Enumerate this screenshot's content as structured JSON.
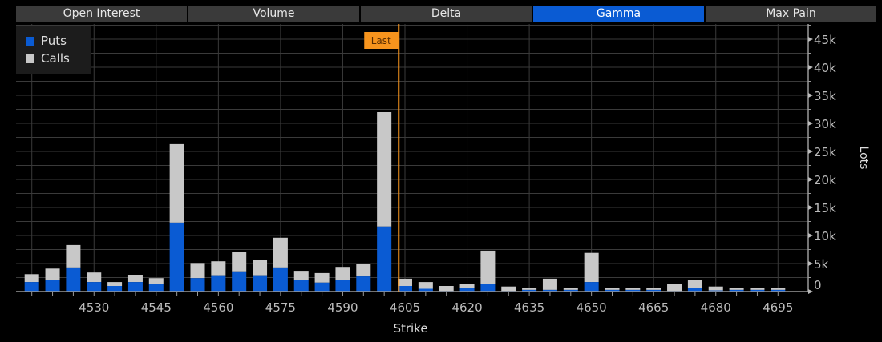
{
  "tabs": [
    {
      "label": "Open Interest",
      "active": false
    },
    {
      "label": "Volume",
      "active": false
    },
    {
      "label": "Delta",
      "active": false
    },
    {
      "label": "Gamma",
      "active": true
    },
    {
      "label": "Max Pain",
      "active": false
    }
  ],
  "colors": {
    "puts": "#0a5bd3",
    "calls": "#c8c8c8",
    "last": "#f7941d",
    "active_tab": "#0a5bd3"
  },
  "chart_data": {
    "type": "bar",
    "stacked": true,
    "xlabel": "Strike",
    "ylabel": "Lots",
    "ylim": [
      0,
      47500
    ],
    "y_ticks": [
      "0",
      "5k",
      "10k",
      "15k",
      "20k",
      "25k",
      "30k",
      "35k",
      "40k",
      "45k"
    ],
    "y_tick_values": [
      0,
      5000,
      10000,
      15000,
      20000,
      25000,
      30000,
      35000,
      40000,
      45000
    ],
    "x_ticks": [
      "4530",
      "4545",
      "4560",
      "4575",
      "4590",
      "4605",
      "4620",
      "4635",
      "4650",
      "4665",
      "4680",
      "4695"
    ],
    "grid": true,
    "legend_position": "top-left",
    "last_marker": {
      "label": "Last",
      "strike": 4603.5
    },
    "categories": [
      4515,
      4520,
      4525,
      4530,
      4535,
      4540,
      4545,
      4550,
      4555,
      4560,
      4565,
      4570,
      4575,
      4580,
      4585,
      4590,
      4595,
      4600,
      4605,
      4610,
      4615,
      4620,
      4625,
      4630,
      4635,
      4640,
      4645,
      4650,
      4655,
      4660,
      4665,
      4670,
      4675,
      4680,
      4685,
      4690,
      4695
    ],
    "series": [
      {
        "name": "Puts",
        "values": [
          1700,
          2100,
          4300,
          1700,
          1000,
          1700,
          1400,
          12300,
          2400,
          2900,
          3600,
          2900,
          4300,
          2100,
          1600,
          2100,
          2700,
          11600,
          1000,
          500,
          100,
          600,
          1300,
          100,
          300,
          300,
          300,
          1700,
          300,
          300,
          300,
          100,
          600,
          200,
          300,
          300,
          300
        ]
      },
      {
        "name": "Calls",
        "values": [
          1400,
          2000,
          4000,
          1700,
          700,
          1300,
          1000,
          14000,
          2700,
          2500,
          3400,
          2800,
          5300,
          1600,
          1700,
          2300,
          2200,
          20400,
          1300,
          1200,
          900,
          700,
          6000,
          800,
          300,
          2000,
          300,
          5200,
          300,
          300,
          300,
          1300,
          1500,
          700,
          300,
          300,
          300
        ]
      }
    ]
  }
}
